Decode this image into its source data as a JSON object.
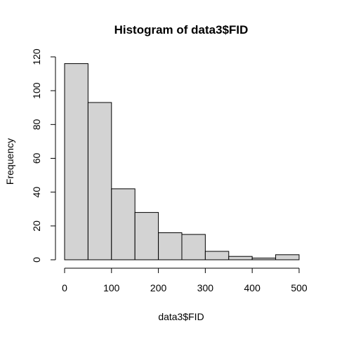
{
  "chart_data": {
    "type": "bar",
    "title": "Histogram of data3$FID",
    "xlabel": "data3$FID",
    "ylabel": "Frequency",
    "bin_edges": [
      0,
      50,
      100,
      150,
      200,
      250,
      300,
      350,
      400,
      450,
      500
    ],
    "values": [
      116,
      93,
      42,
      28,
      16,
      15,
      5,
      2,
      1,
      3
    ],
    "xlim": [
      0,
      500
    ],
    "ylim": [
      0,
      120
    ],
    "x_ticks": [
      0,
      100,
      200,
      300,
      400,
      500
    ],
    "y_ticks": [
      0,
      20,
      40,
      60,
      80,
      100,
      120
    ],
    "bar_fill": "#d3d3d3",
    "bar_stroke": "#000000",
    "grid": false,
    "legend": "none"
  }
}
